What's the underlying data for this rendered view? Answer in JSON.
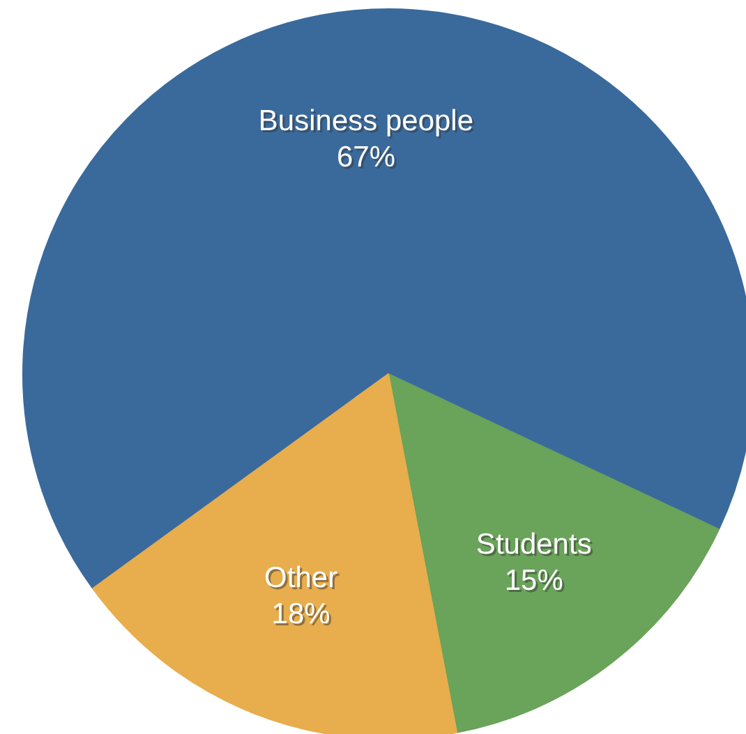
{
  "chart_data": {
    "type": "pie",
    "categories": [
      "Business people",
      "Students",
      "Other"
    ],
    "values": [
      67,
      15,
      18
    ],
    "colors": [
      "#3a6a9c",
      "#6aa35a",
      "#e8ad4c"
    ],
    "value_labels": [
      "67%",
      "15%",
      "18%"
    ],
    "legend": false
  }
}
